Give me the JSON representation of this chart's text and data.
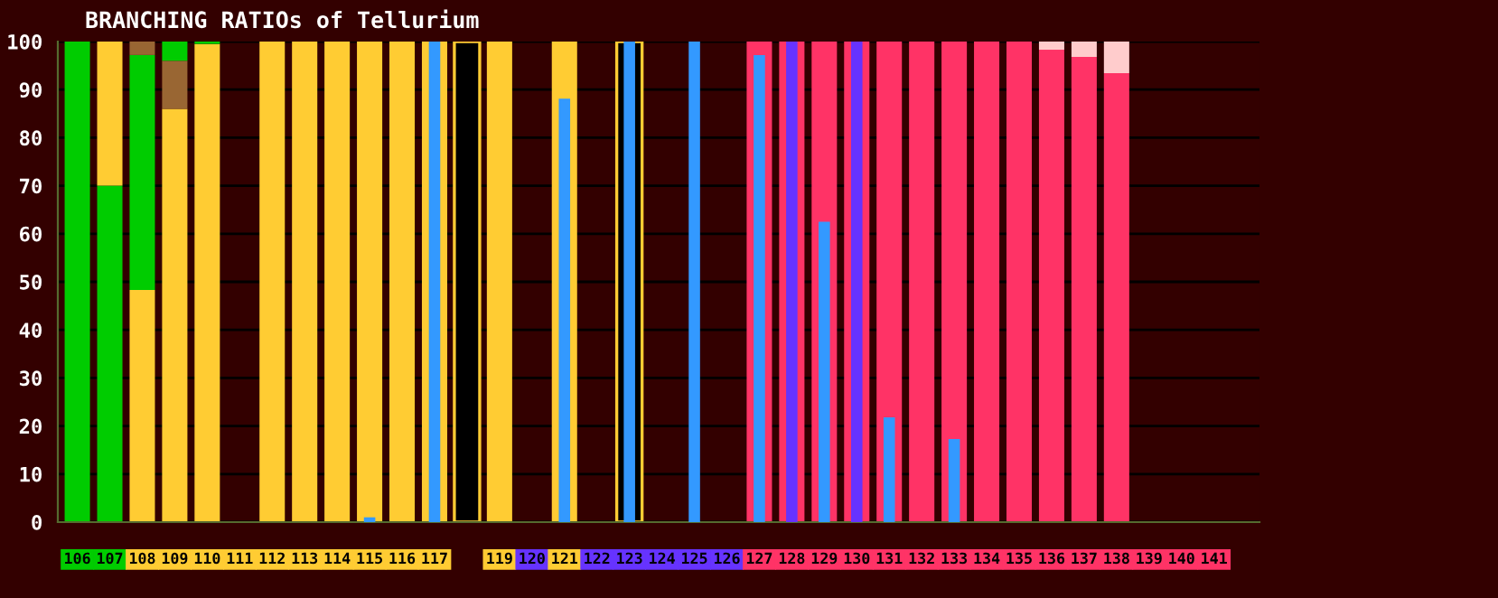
{
  "chart_data": [
    {
      "type": "bar",
      "title": "BRANCHING RATIOs of Tellurium",
      "categories": [
        "106",
        "107",
        "108",
        "109",
        "110",
        "111",
        "112",
        "113",
        "114",
        "115",
        "116",
        "117",
        null,
        "119",
        "120",
        "121",
        "122",
        "123",
        "124",
        "125",
        "126",
        "127",
        "128",
        "129",
        "130",
        "131",
        "132",
        "133",
        "134",
        "135",
        "136",
        "137",
        "138",
        "139",
        "140",
        "141"
      ],
      "stacked": true,
      "ylim": [
        0,
        100
      ],
      "yticks": [
        0,
        10,
        20,
        30,
        40,
        50,
        60,
        70,
        80,
        90,
        100
      ],
      "grid": "y",
      "series": [
        {
          "values": [
            100,
            70,
            48.3,
            86,
            99.5,
            null,
            100,
            100,
            100,
            100,
            100,
            100,
            100,
            100,
            null,
            100,
            null,
            100,
            null,
            null,
            null,
            100,
            100,
            100,
            100,
            100,
            100,
            100,
            100,
            100,
            98.3,
            96.8,
            93.4,
            null,
            null,
            null
          ],
          "colors": [
            "#00cc00",
            "#00cc00",
            "#ffcc33",
            "#ffcc33",
            "#ffcc33",
            "#ffcc33",
            "#ffcc33",
            "#ffcc33",
            "#ffcc33",
            "#ffcc33",
            "#ffcc33",
            "#ffcc33",
            "#000000",
            "#ffcc33",
            "#6633ff",
            "#ffcc33",
            "#6633ff",
            "#000000",
            "#6633ff",
            "#6633ff",
            "#6633ff",
            "#ff3366",
            "#ff3366",
            "#ff3366",
            "#ff3366",
            "#ff3366",
            "#ff3366",
            "#ff3366",
            "#ff3366",
            "#ff3366",
            "#ff3366",
            "#ff3366",
            "#ff3366",
            "#ff3366",
            "#ff3366",
            "#ff3366"
          ]
        },
        {
          "values": [
            null,
            30,
            48.9,
            10,
            0.5,
            null,
            null,
            null,
            null,
            null,
            null,
            null,
            null,
            null,
            null,
            null,
            null,
            null,
            null,
            null,
            null,
            null,
            null,
            null,
            null,
            null,
            null,
            null,
            null,
            null,
            1.7,
            3.2,
            6.6,
            null,
            null,
            null
          ],
          "colors": [
            "#ffcc33",
            "#ffcc33",
            "#00cc00",
            "#996633",
            "#00cc00",
            "#996633",
            "#ffcc33",
            "#ffcc33",
            "#ffcc33",
            "#ffcc33",
            "#ffcc33",
            "#ffcc33",
            "#ffcc33",
            "#ffcc33",
            "#ffcc33",
            "#ffcc33",
            "#ffcc33",
            "#ffcc33",
            "#ffcc33",
            "#ffcc33",
            "#ffcc33",
            "#ffcc33",
            "#6633ff",
            "#ffcc33",
            "#6633ff",
            "#ffcc33",
            "#ffcc33",
            "#ffcc33",
            "#ffcc33",
            "#ffcc33",
            "#ffcccc",
            "#ffcccc",
            "#ffcccc",
            "#ffcccc",
            "#ffcccc",
            "#ffcccc"
          ]
        },
        {
          "values": [
            null,
            null,
            2.8,
            4,
            null,
            null,
            null,
            null,
            null,
            null,
            null,
            null,
            null,
            null,
            null,
            null,
            null,
            null,
            null,
            null,
            null,
            null,
            null,
            null,
            null,
            null,
            null,
            null,
            null,
            null,
            null,
            null,
            null,
            null,
            null,
            null
          ],
          "colors": [
            "#996633",
            "#996633",
            "#996633",
            "#00cc00",
            "#996633",
            "#996633",
            "#996633",
            "#996633",
            "#996633",
            "#996633",
            "#996633",
            "#996633",
            "#996633",
            "#996633",
            "#996633",
            "#996633",
            "#996633",
            "#996633",
            "#996633",
            "#996633",
            "#996633",
            "#996633",
            "#996633",
            "#996633",
            "#996633",
            "#996633",
            "#996633",
            "#996633",
            "#996633",
            "#996633",
            "#996633",
            "#996633",
            "#996633",
            "#996633",
            "#996633",
            "#996633"
          ]
        }
      ]
    },
    {
      "type": "bar",
      "categories": [
        "106",
        "107",
        "108",
        "109",
        "110",
        "111",
        "112",
        "113",
        "114",
        "115",
        "116",
        "117",
        null,
        "119",
        "120",
        "121",
        "122",
        "123",
        "124",
        "125",
        "126",
        "127",
        "128",
        "129",
        "130",
        "131",
        "132",
        "133",
        "134",
        "135",
        "136",
        "137",
        "138",
        "139",
        "140",
        "141"
      ],
      "ylim": [
        0,
        100
      ],
      "tick_labels": false,
      "series": [
        {
          "values": [
            null,
            null,
            null,
            null,
            null,
            null,
            null,
            null,
            null,
            1,
            null,
            100,
            null,
            null,
            null,
            88.1,
            null,
            100,
            null,
            100,
            null,
            97.2,
            100,
            62.5,
            100,
            21.8,
            null,
            17.3,
            null,
            null,
            null,
            null,
            null,
            null,
            null,
            null
          ],
          "colors": [
            "#3399ff",
            "#3399ff",
            "#3399ff",
            "#3399ff",
            "#3399ff",
            "#3399ff",
            "#3399ff",
            "#3399ff",
            "#3399ff",
            "#3399ff",
            "#3399ff",
            "#3399ff",
            "#3399ff",
            "#3399ff",
            "#3399ff",
            "#3399ff",
            "#3399ff",
            "#3399ff",
            "#3399ff",
            "#3399ff",
            "#3399ff",
            "#3399ff",
            "#6633ff",
            "#3399ff",
            "#6633ff",
            "#3399ff",
            "#3399ff",
            "#3399ff",
            "#3399ff",
            "#3399ff",
            "#3399ff",
            "#3399ff",
            "#3399ff",
            "#3399ff",
            "#3399ff",
            "#3399ff"
          ]
        }
      ]
    }
  ]
}
